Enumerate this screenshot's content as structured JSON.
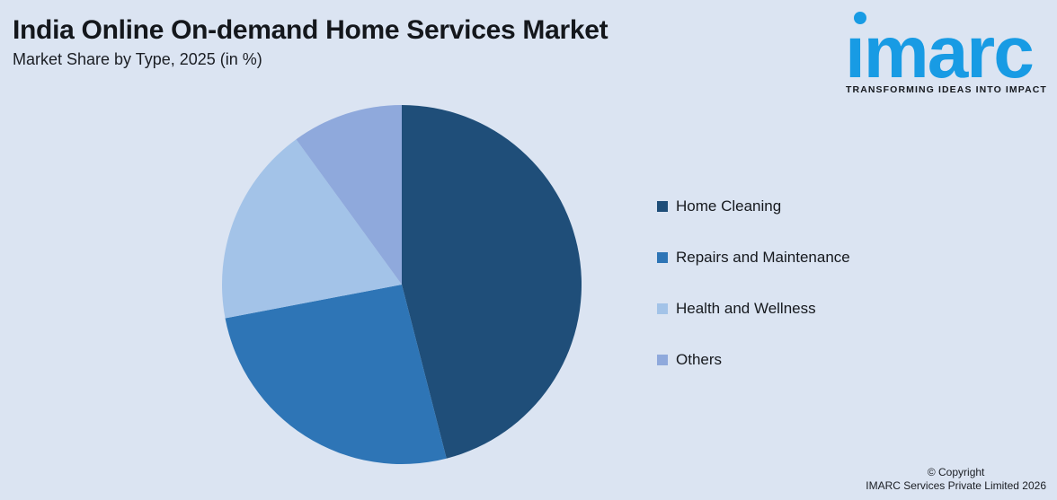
{
  "header": {
    "title": "India Online On-demand Home Services Market",
    "subtitle": "Market Share by Type, 2025 (in %)"
  },
  "logo": {
    "brand": "imarc",
    "tagline": "TRANSFORMING IDEAS INTO IMPACT",
    "brand_color": "#189BE4",
    "tagline_color": "#15181D"
  },
  "chart_data": {
    "type": "pie",
    "title": "India Online On-demand Home Services Market",
    "subtitle": "Market Share by Type, 2025 (in %)",
    "unit": "%",
    "categories": [
      "Home Cleaning",
      "Repairs and Maintenance",
      "Health and Wellness",
      "Others"
    ],
    "values": [
      46,
      26,
      18,
      10
    ],
    "colors": [
      "#1F4E79",
      "#2E75B6",
      "#A3C3E8",
      "#8FA9DC"
    ],
    "start_angle_deg": 0,
    "direction": "clockwise",
    "legend_position": "right",
    "data_labels": false
  },
  "footer": {
    "copyright_line1": "© Copyright",
    "copyright_line2": "IMARC Services Private Limited 2026"
  },
  "theme": {
    "background": "#DBE4F2",
    "text_color": "#15181D"
  }
}
